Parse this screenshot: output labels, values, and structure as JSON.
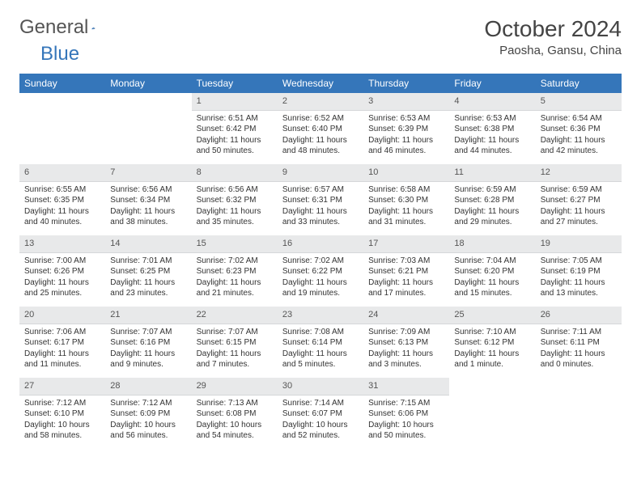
{
  "logo": {
    "text1": "General",
    "text2": "Blue"
  },
  "title": "October 2024",
  "location": "Paosha, Gansu, China",
  "colors": {
    "header_bg": "#3576ba",
    "header_fg": "#ffffff",
    "daynum_bg": "#e8e9ea",
    "daynum_fg": "#555555",
    "body_bg": "#ffffff",
    "logo_gray": "#555555",
    "logo_blue": "#3576ba"
  },
  "weekdays": [
    "Sunday",
    "Monday",
    "Tuesday",
    "Wednesday",
    "Thursday",
    "Friday",
    "Saturday"
  ],
  "weeks": [
    [
      null,
      null,
      {
        "n": "1",
        "sr": "6:51 AM",
        "ss": "6:42 PM",
        "dl": "11 hours and 50 minutes."
      },
      {
        "n": "2",
        "sr": "6:52 AM",
        "ss": "6:40 PM",
        "dl": "11 hours and 48 minutes."
      },
      {
        "n": "3",
        "sr": "6:53 AM",
        "ss": "6:39 PM",
        "dl": "11 hours and 46 minutes."
      },
      {
        "n": "4",
        "sr": "6:53 AM",
        "ss": "6:38 PM",
        "dl": "11 hours and 44 minutes."
      },
      {
        "n": "5",
        "sr": "6:54 AM",
        "ss": "6:36 PM",
        "dl": "11 hours and 42 minutes."
      }
    ],
    [
      {
        "n": "6",
        "sr": "6:55 AM",
        "ss": "6:35 PM",
        "dl": "11 hours and 40 minutes."
      },
      {
        "n": "7",
        "sr": "6:56 AM",
        "ss": "6:34 PM",
        "dl": "11 hours and 38 minutes."
      },
      {
        "n": "8",
        "sr": "6:56 AM",
        "ss": "6:32 PM",
        "dl": "11 hours and 35 minutes."
      },
      {
        "n": "9",
        "sr": "6:57 AM",
        "ss": "6:31 PM",
        "dl": "11 hours and 33 minutes."
      },
      {
        "n": "10",
        "sr": "6:58 AM",
        "ss": "6:30 PM",
        "dl": "11 hours and 31 minutes."
      },
      {
        "n": "11",
        "sr": "6:59 AM",
        "ss": "6:28 PM",
        "dl": "11 hours and 29 minutes."
      },
      {
        "n": "12",
        "sr": "6:59 AM",
        "ss": "6:27 PM",
        "dl": "11 hours and 27 minutes."
      }
    ],
    [
      {
        "n": "13",
        "sr": "7:00 AM",
        "ss": "6:26 PM",
        "dl": "11 hours and 25 minutes."
      },
      {
        "n": "14",
        "sr": "7:01 AM",
        "ss": "6:25 PM",
        "dl": "11 hours and 23 minutes."
      },
      {
        "n": "15",
        "sr": "7:02 AM",
        "ss": "6:23 PM",
        "dl": "11 hours and 21 minutes."
      },
      {
        "n": "16",
        "sr": "7:02 AM",
        "ss": "6:22 PM",
        "dl": "11 hours and 19 minutes."
      },
      {
        "n": "17",
        "sr": "7:03 AM",
        "ss": "6:21 PM",
        "dl": "11 hours and 17 minutes."
      },
      {
        "n": "18",
        "sr": "7:04 AM",
        "ss": "6:20 PM",
        "dl": "11 hours and 15 minutes."
      },
      {
        "n": "19",
        "sr": "7:05 AM",
        "ss": "6:19 PM",
        "dl": "11 hours and 13 minutes."
      }
    ],
    [
      {
        "n": "20",
        "sr": "7:06 AM",
        "ss": "6:17 PM",
        "dl": "11 hours and 11 minutes."
      },
      {
        "n": "21",
        "sr": "7:07 AM",
        "ss": "6:16 PM",
        "dl": "11 hours and 9 minutes."
      },
      {
        "n": "22",
        "sr": "7:07 AM",
        "ss": "6:15 PM",
        "dl": "11 hours and 7 minutes."
      },
      {
        "n": "23",
        "sr": "7:08 AM",
        "ss": "6:14 PM",
        "dl": "11 hours and 5 minutes."
      },
      {
        "n": "24",
        "sr": "7:09 AM",
        "ss": "6:13 PM",
        "dl": "11 hours and 3 minutes."
      },
      {
        "n": "25",
        "sr": "7:10 AM",
        "ss": "6:12 PM",
        "dl": "11 hours and 1 minute."
      },
      {
        "n": "26",
        "sr": "7:11 AM",
        "ss": "6:11 PM",
        "dl": "11 hours and 0 minutes."
      }
    ],
    [
      {
        "n": "27",
        "sr": "7:12 AM",
        "ss": "6:10 PM",
        "dl": "10 hours and 58 minutes."
      },
      {
        "n": "28",
        "sr": "7:12 AM",
        "ss": "6:09 PM",
        "dl": "10 hours and 56 minutes."
      },
      {
        "n": "29",
        "sr": "7:13 AM",
        "ss": "6:08 PM",
        "dl": "10 hours and 54 minutes."
      },
      {
        "n": "30",
        "sr": "7:14 AM",
        "ss": "6:07 PM",
        "dl": "10 hours and 52 minutes."
      },
      {
        "n": "31",
        "sr": "7:15 AM",
        "ss": "6:06 PM",
        "dl": "10 hours and 50 minutes."
      },
      null,
      null
    ]
  ],
  "labels": {
    "sunrise": "Sunrise:",
    "sunset": "Sunset:",
    "daylight": "Daylight:"
  }
}
